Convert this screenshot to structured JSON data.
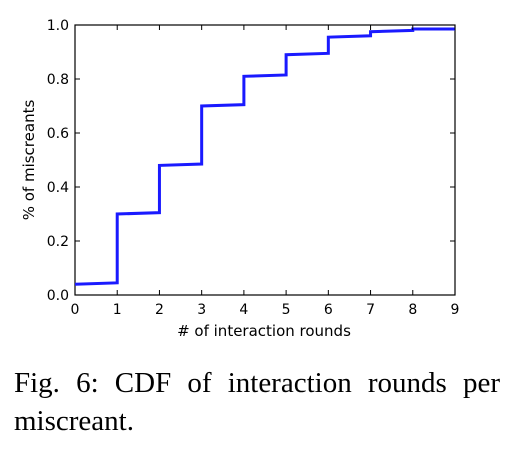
{
  "caption": "Fig. 6: CDF of interaction rounds per miscreant.",
  "chart_data": {
    "type": "line",
    "step": "post",
    "title": "",
    "xlabel": "# of interaction rounds",
    "ylabel": "% of miscreants",
    "xlim": [
      0,
      9
    ],
    "ylim": [
      0.0,
      1.0
    ],
    "xticks": [
      "0",
      "1",
      "2",
      "3",
      "4",
      "5",
      "6",
      "7",
      "8",
      "9"
    ],
    "yticks": [
      "0.0",
      "0.2",
      "0.4",
      "0.6",
      "0.8",
      "1.0"
    ],
    "grid": false,
    "legend": "none",
    "series": [
      {
        "color": "#1a1aff",
        "x": [
          0,
          1,
          2,
          3,
          4,
          5,
          6,
          7,
          8,
          9
        ],
        "y": [
          0.04,
          0.045,
          0.3,
          0.48,
          0.7,
          0.81,
          0.89,
          0.955,
          0.975,
          0.985
        ],
        "y_at_x_end": 0.985
      }
    ]
  }
}
